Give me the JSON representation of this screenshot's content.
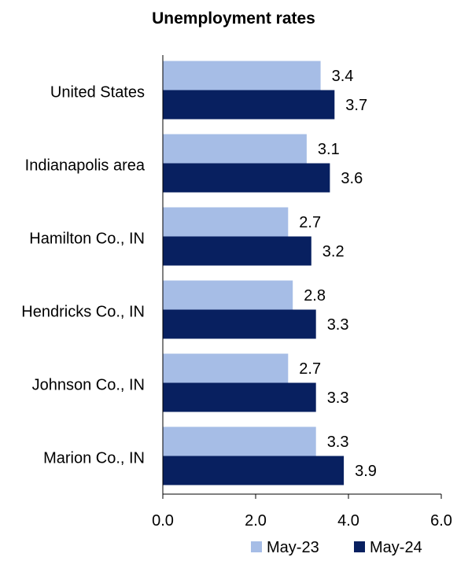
{
  "chart_data": {
    "type": "bar",
    "orientation": "horizontal",
    "title": "Unemployment rates",
    "xlabel": "",
    "ylabel": "",
    "categories": [
      "United States",
      "Indianapolis area",
      "Hamilton  Co., IN",
      "Hendricks Co., IN",
      "Johnson Co., IN",
      "Marion Co., IN"
    ],
    "series": [
      {
        "name": "May-23",
        "color": "#a6bde6",
        "values": [
          3.4,
          3.1,
          2.7,
          2.8,
          2.7,
          3.3
        ]
      },
      {
        "name": "May-24",
        "color": "#082060",
        "values": [
          3.7,
          3.6,
          3.2,
          3.3,
          3.3,
          3.9
        ]
      }
    ],
    "xlim": [
      0,
      6
    ],
    "xticks": [
      0,
      2,
      4,
      6
    ],
    "xtick_labels": [
      "0.0",
      "2.0",
      "4.0",
      "6.0"
    ],
    "grid": false,
    "legend_position": "bottom-right",
    "data_labels": true
  }
}
